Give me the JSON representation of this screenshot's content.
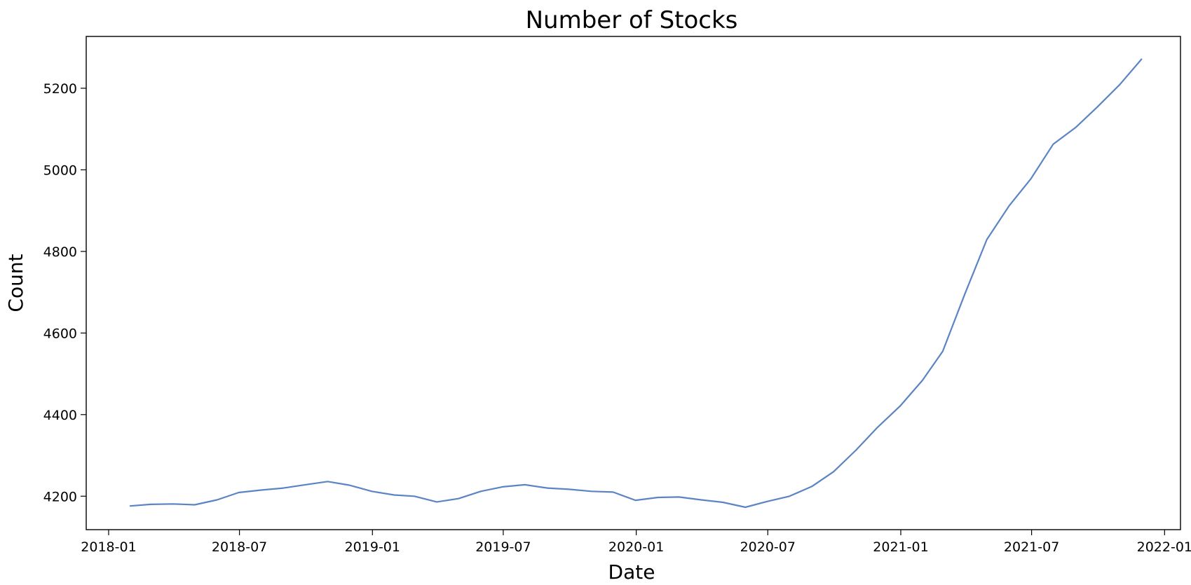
{
  "chart_data": {
    "type": "line",
    "title": "Number of Stocks",
    "xlabel": "Date",
    "ylabel": "Count",
    "grid": false,
    "legend": "none",
    "xlim": [
      "2017-12-01",
      "2022-01-23"
    ],
    "ylim": [
      4118,
      5327
    ],
    "x_ticks": [
      {
        "value": "2018-01-01",
        "label": "2018-01"
      },
      {
        "value": "2018-07-01",
        "label": "2018-07"
      },
      {
        "value": "2019-01-01",
        "label": "2019-01"
      },
      {
        "value": "2019-07-01",
        "label": "2019-07"
      },
      {
        "value": "2020-01-01",
        "label": "2020-01"
      },
      {
        "value": "2020-07-01",
        "label": "2020-07"
      },
      {
        "value": "2021-01-01",
        "label": "2021-01"
      },
      {
        "value": "2021-07-01",
        "label": "2021-07"
      },
      {
        "value": "2022-01-01",
        "label": "2022-01"
      }
    ],
    "y_ticks": [
      4200,
      4400,
      4600,
      4800,
      5000,
      5200
    ],
    "series": [
      {
        "color": "#5b84c4",
        "x": [
          "2018-01-31",
          "2018-02-28",
          "2018-03-31",
          "2018-04-30",
          "2018-05-31",
          "2018-06-30",
          "2018-07-31",
          "2018-08-31",
          "2018-09-30",
          "2018-10-31",
          "2018-11-30",
          "2018-12-31",
          "2019-01-31",
          "2019-02-28",
          "2019-03-31",
          "2019-04-30",
          "2019-05-31",
          "2019-06-30",
          "2019-07-31",
          "2019-08-31",
          "2019-09-30",
          "2019-10-31",
          "2019-11-30",
          "2019-12-31",
          "2020-01-31",
          "2020-02-29",
          "2020-03-31",
          "2020-04-30",
          "2020-05-31",
          "2020-06-30",
          "2020-07-31",
          "2020-08-31",
          "2020-09-30",
          "2020-10-31",
          "2020-11-30",
          "2020-12-31",
          "2021-01-31",
          "2021-02-28",
          "2021-03-31",
          "2021-04-30",
          "2021-05-31",
          "2021-06-30",
          "2021-07-31",
          "2021-08-31",
          "2021-09-30",
          "2021-10-31",
          "2021-11-30"
        ],
        "y": [
          4176,
          4180,
          4181,
          4179,
          4191,
          4209,
          4215,
          4220,
          4228,
          4236,
          4227,
          4212,
          4203,
          4200,
          4186,
          4194,
          4212,
          4223,
          4228,
          4220,
          4217,
          4212,
          4210,
          4190,
          4197,
          4198,
          4191,
          4185,
          4173,
          4187,
          4200,
          4224,
          4260,
          4313,
          4369,
          4421,
          4484,
          4555,
          4697,
          4829,
          4912,
          4978,
          5063,
          5104,
          5154,
          5209,
          5271
        ]
      }
    ]
  }
}
